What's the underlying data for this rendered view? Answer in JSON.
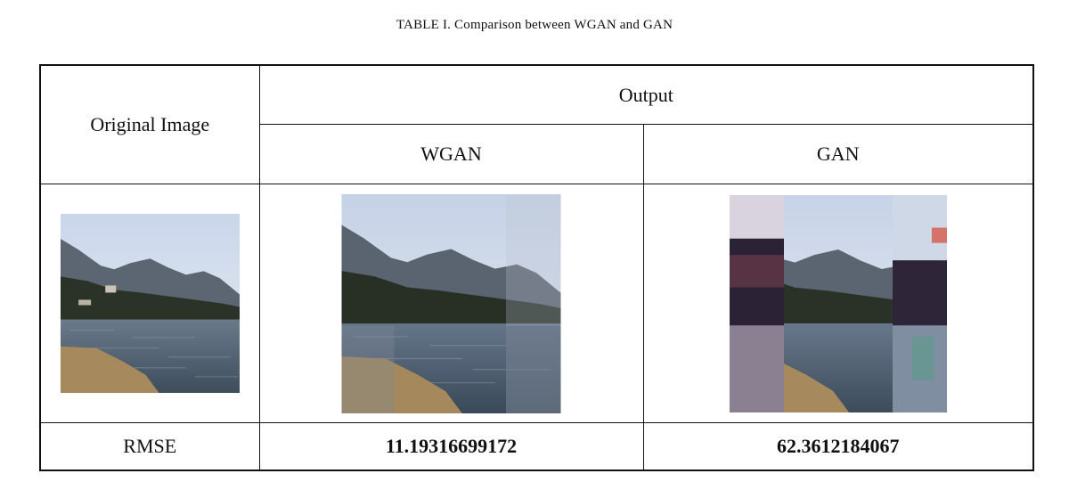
{
  "caption": "TABLE I.  Comparison between WGAN and GAN",
  "table": {
    "header": {
      "original_image": "Original Image",
      "output": "Output",
      "wgan": "WGAN",
      "gan": "GAN"
    },
    "rmse_row": {
      "label": "RMSE",
      "wgan_value": "11.19316699172",
      "gan_value": "62.3612184067"
    },
    "images": {
      "original": "lake-mountain-photo",
      "wgan": "wgan-reconstruction-photo",
      "gan": "gan-reconstruction-photo"
    }
  }
}
